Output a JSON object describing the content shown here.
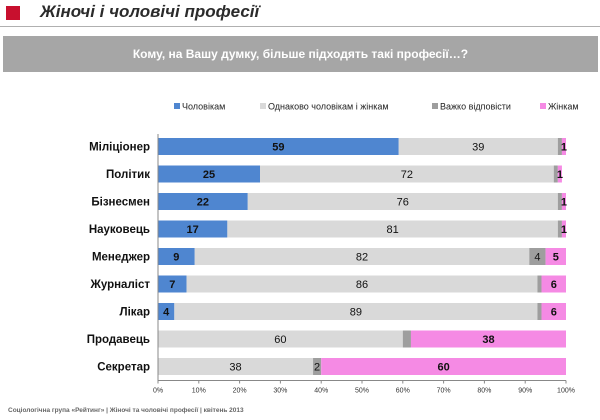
{
  "page": {
    "title": "Жіночі і чоловічі професії",
    "question": "Кому, на Вашу думку, більше підходять такі професії…?",
    "footer": "Соціологічна група «Рейтинг»  |  Жіночі та чоловічі професії  |  квітень 2013"
  },
  "chart_data": {
    "type": "bar",
    "orientation": "horizontal",
    "stacked": true,
    "categories": [
      "Міліціонер",
      "Політик",
      "Бізнесмен",
      "Науковець",
      "Менеджер",
      "Журналіст",
      "Лікар",
      "Продавець",
      "Секретар"
    ],
    "series": [
      {
        "name": "Чоловікам",
        "color": "#4f86d0",
        "values": [
          59,
          25,
          22,
          17,
          9,
          7,
          4,
          0,
          0
        ]
      },
      {
        "name": "Однаково чоловікам і жінкам",
        "color": "#d9d9d9",
        "values": [
          39,
          72,
          76,
          81,
          82,
          86,
          89,
          60,
          38
        ]
      },
      {
        "name": "Важко відповісти",
        "color": "#9e9e9e",
        "values": [
          1,
          1,
          1,
          1,
          4,
          1,
          1,
          2,
          2
        ]
      },
      {
        "name": "Жінкам",
        "color": "#f58ae4",
        "values": [
          1,
          1,
          1,
          1,
          5,
          6,
          6,
          38,
          60
        ]
      }
    ],
    "data_labels": [
      [
        "59",
        "39",
        "",
        "1"
      ],
      [
        "25",
        "72",
        "",
        "1"
      ],
      [
        "22",
        "76",
        "",
        "1"
      ],
      [
        "17",
        "81",
        "",
        "1"
      ],
      [
        "9",
        "82",
        "4",
        "5"
      ],
      [
        "7",
        "86",
        "",
        "6"
      ],
      [
        "4",
        "89",
        "",
        "6"
      ],
      [
        "",
        "60",
        "",
        "38"
      ],
      [
        "",
        "38",
        "2",
        "60"
      ]
    ],
    "xlim": [
      0,
      100
    ],
    "x_ticks": [
      "0%",
      "10%",
      "20%",
      "30%",
      "40%",
      "50%",
      "60%",
      "70%",
      "80%",
      "90%",
      "100%"
    ],
    "legend_position": "top",
    "grid": false
  }
}
